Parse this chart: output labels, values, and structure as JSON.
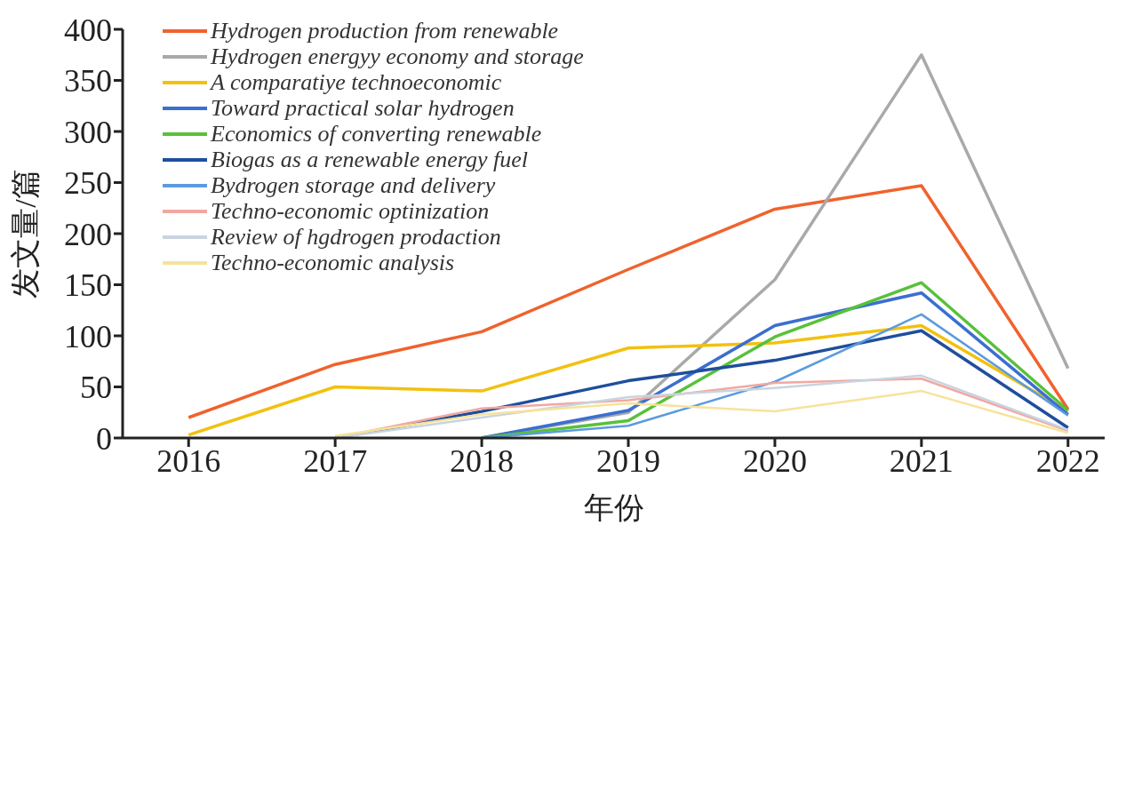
{
  "chart_data": {
    "type": "line",
    "xlabel": "年份",
    "ylabel": "发文量/篇",
    "x": [
      2016,
      2017,
      2018,
      2019,
      2020,
      2021,
      2022
    ],
    "xlim": [
      2015.55,
      2022.25
    ],
    "xticks": [
      2016,
      2017,
      2018,
      2019,
      2020,
      2021,
      2022
    ],
    "ylim": [
      0,
      400
    ],
    "yticks": [
      0,
      50,
      100,
      150,
      200,
      250,
      300,
      350,
      400
    ],
    "grid": false,
    "legend": "top left",
    "marker": "none",
    "line_style": "solid",
    "series": [
      {
        "name": "Hydrogen production from renewable",
        "color": "#f0622d",
        "values": [
          20,
          72,
          104,
          165,
          224,
          247,
          28
        ]
      },
      {
        "name": "Hydrogen energyy economy and storage",
        "color": "#a9a9a9",
        "values": [
          null,
          null,
          0,
          25,
          155,
          375,
          68
        ]
      },
      {
        "name": "A comparatiye technoeconomic",
        "color": "#f2c10f",
        "values": [
          3,
          50,
          46,
          88,
          93,
          110,
          26
        ]
      },
      {
        "name": "Toward practical solar hydrogen",
        "color": "#3b6fd0",
        "values": [
          null,
          null,
          0,
          27,
          110,
          142,
          23
        ]
      },
      {
        "name": "Economics of converting renewable",
        "color": "#58c13a",
        "values": [
          null,
          null,
          0,
          17,
          99,
          152,
          27
        ]
      },
      {
        "name": "Biogas as a renewable energy fuel",
        "color": "#1f4e9c",
        "values": [
          null,
          0,
          26,
          56,
          76,
          105,
          10
        ]
      },
      {
        "name": "Bydrogen storage and delivery",
        "color": "#5b9be0",
        "values": [
          null,
          null,
          0,
          12,
          55,
          121,
          22
        ]
      },
      {
        "name": "Techno-economic optinization",
        "color": "#f2a8a0",
        "values": [
          null,
          0,
          29,
          37,
          54,
          58,
          7
        ]
      },
      {
        "name": "Review of hgdrogen prodaction",
        "color": "#c8d4e0",
        "values": [
          null,
          0,
          20,
          40,
          49,
          61,
          8
        ]
      },
      {
        "name": "Techno-economic analysis",
        "color": "#f6e39a",
        "values": [
          null,
          2,
          23,
          34,
          26,
          46,
          5
        ]
      }
    ]
  }
}
